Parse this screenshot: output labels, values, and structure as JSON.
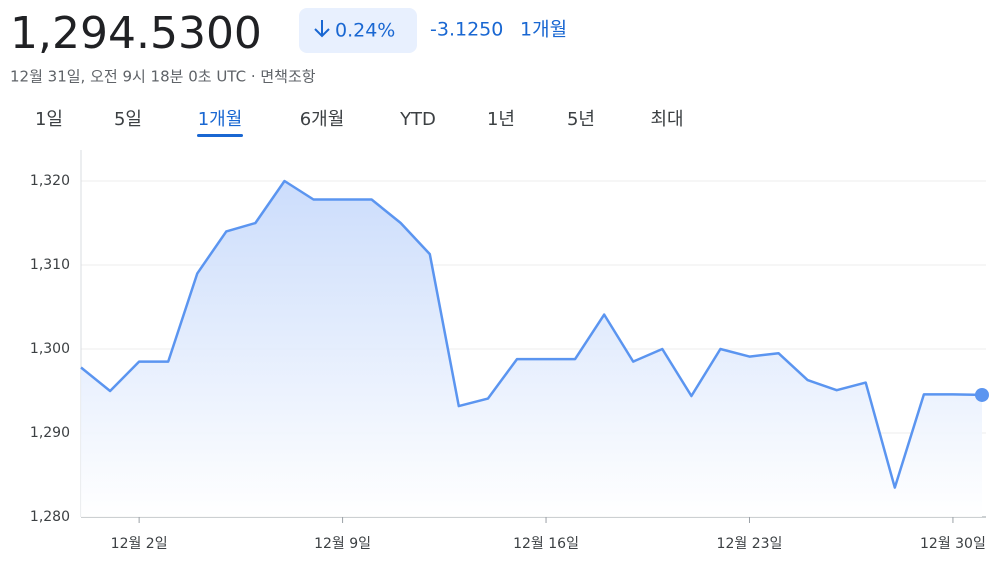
{
  "header": {
    "price": "1,294.5300",
    "change_percent": "0.24%",
    "change": "-3.1250",
    "period": "1개월",
    "timestamp": "12월 31일, 오전 9시 18분 0초 UTC · 면책조항"
  },
  "tabs": [
    "1일",
    "5일",
    "1개월",
    "6개월",
    "YTD",
    "1년",
    "5년",
    "최대"
  ],
  "selected_tab": 2,
  "chart_data": {
    "type": "line",
    "color": "#5b95f0",
    "categories": [
      null,
      null,
      "12월 2일",
      null,
      null,
      null,
      null,
      null,
      null,
      "12월 9일",
      null,
      null,
      null,
      null,
      null,
      null,
      "12월 16일",
      null,
      null,
      null,
      null,
      null,
      null,
      "12월 23일",
      null,
      null,
      null,
      null,
      null,
      null,
      "12월 30일",
      null
    ],
    "values": [
      1297.8,
      1295,
      1298.5,
      1298.5,
      1309,
      1314,
      1315,
      1320,
      1317.8,
      1317.8,
      1317.8,
      1315,
      1311.3,
      1293.2,
      1294.1,
      1298.8,
      1298.8,
      1298.8,
      1304.1,
      1298.5,
      1300,
      1294.4,
      1300,
      1299.1,
      1299.5,
      1296.3,
      1295.1,
      1296,
      1283.5,
      1294.6,
      1294.6,
      1294.53
    ],
    "ylim": [
      1280,
      1320
    ],
    "yticks": [
      {
        "value": 1280,
        "label": "1,280"
      },
      {
        "value": 1290,
        "label": "1,290"
      },
      {
        "value": 1300,
        "label": "1,300"
      },
      {
        "value": 1310,
        "label": "1,310"
      },
      {
        "value": 1320,
        "label": "1,320"
      }
    ],
    "grid": true
  }
}
